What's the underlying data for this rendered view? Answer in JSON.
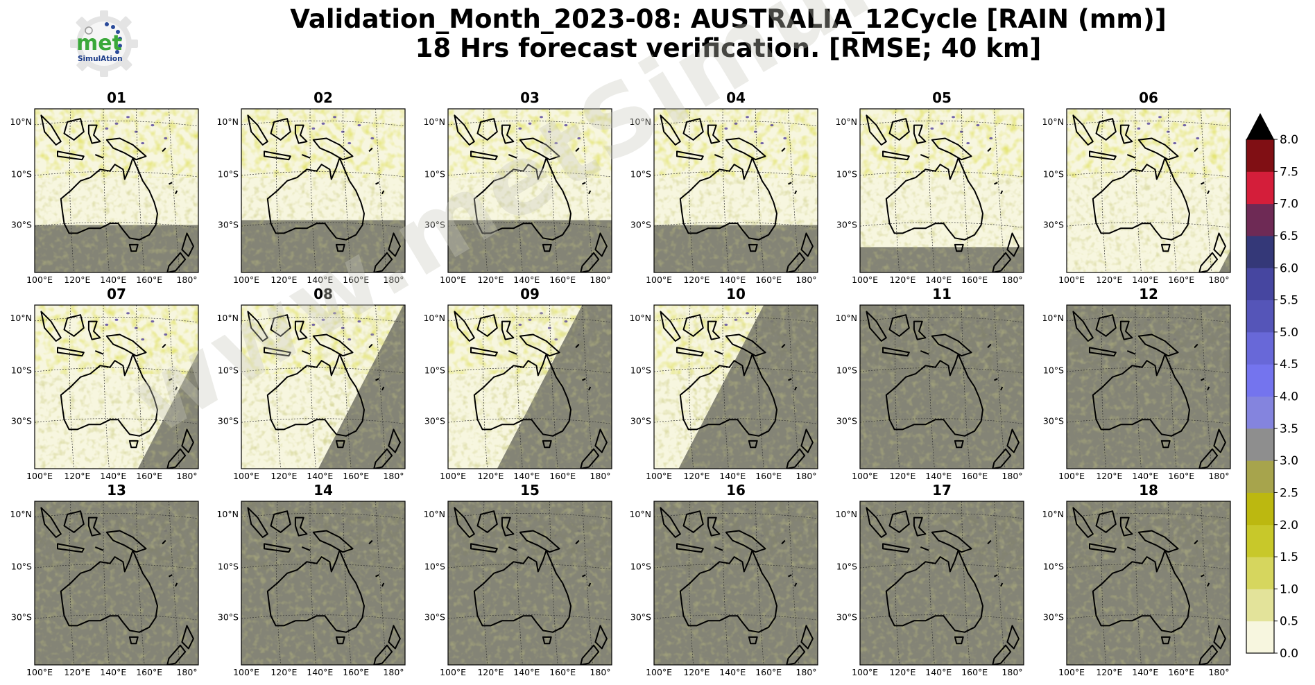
{
  "title_line1": "Validation_Month_2023-08: AUSTRALIA_12Cycle [RAIN (mm)]",
  "title_line2": "18 Hrs forecast verification.  [RMSE; 40 km]",
  "logo": {
    "text_main": "met",
    "text_sub": "SimulAtion"
  },
  "watermark": "www.metSimulation.com",
  "chart_data": {
    "type": "heatmap",
    "title": "Validation_Month_2023-08: AUSTRALIA_12Cycle [RAIN (mm)] 18 Hrs forecast verification.  [RMSE; 40 km]",
    "panels": [
      {
        "label": "01",
        "night_boundary": "flat",
        "night_lat": -29
      },
      {
        "label": "02",
        "night_boundary": "flat",
        "night_lat": -27
      },
      {
        "label": "03",
        "night_boundary": "flat",
        "night_lat": -27
      },
      {
        "label": "04",
        "night_boundary": "flat",
        "night_lat": -29
      },
      {
        "label": "05",
        "night_boundary": "flat",
        "night_lat": -38
      },
      {
        "label": "06",
        "night_boundary": "diagonal",
        "night_start": 0.93
      },
      {
        "label": "07",
        "night_boundary": "diagonal",
        "night_start": 0.63
      },
      {
        "label": "08",
        "night_boundary": "diagonal",
        "night_start": 0.47
      },
      {
        "label": "09",
        "night_boundary": "diagonal",
        "night_start": 0.3
      },
      {
        "label": "10",
        "night_boundary": "diagonal",
        "night_start": 0.15
      },
      {
        "label": "11",
        "night_boundary": "full"
      },
      {
        "label": "12",
        "night_boundary": "full"
      },
      {
        "label": "13",
        "night_boundary": "full"
      },
      {
        "label": "14",
        "night_boundary": "full"
      },
      {
        "label": "15",
        "night_boundary": "full"
      },
      {
        "label": "16",
        "night_boundary": "full"
      },
      {
        "label": "17",
        "night_boundary": "full"
      },
      {
        "label": "18",
        "night_boundary": "full"
      }
    ],
    "x_ticks": [
      "100°E",
      "120°E",
      "140°E",
      "160°E",
      "180°"
    ],
    "y_ticks": [
      "10°N",
      "10°S",
      "30°S"
    ],
    "colorbar": {
      "ticks": [
        "0.0",
        "0.5",
        "1.0",
        "1.5",
        "2.0",
        "2.5",
        "3.0",
        "3.5",
        "4.0",
        "4.5",
        "5.0",
        "5.5",
        "6.0",
        "6.5",
        "7.0",
        "7.5",
        "8.0"
      ],
      "levels": [
        0,
        0.5,
        1,
        1.5,
        2,
        2.5,
        3,
        3.5,
        4,
        4.5,
        5,
        5.5,
        6,
        6.5,
        7,
        7.5,
        8
      ],
      "colors": [
        "#f7f6df",
        "#e3e39a",
        "#d6d65e",
        "#c8c82a",
        "#bcb810",
        "#a7a44c",
        "#8e8e8e",
        "#8484de",
        "#7474ee",
        "#6868d8",
        "#5555b8",
        "#4646a0",
        "#343878",
        "#6e2a55",
        "#d41e3a",
        "#800f14"
      ],
      "extend": "max",
      "extend_color": "#000000"
    },
    "night_color": "#7a7a6c",
    "land_color": "#f7f6df",
    "rain_color": "#c8c83a"
  }
}
